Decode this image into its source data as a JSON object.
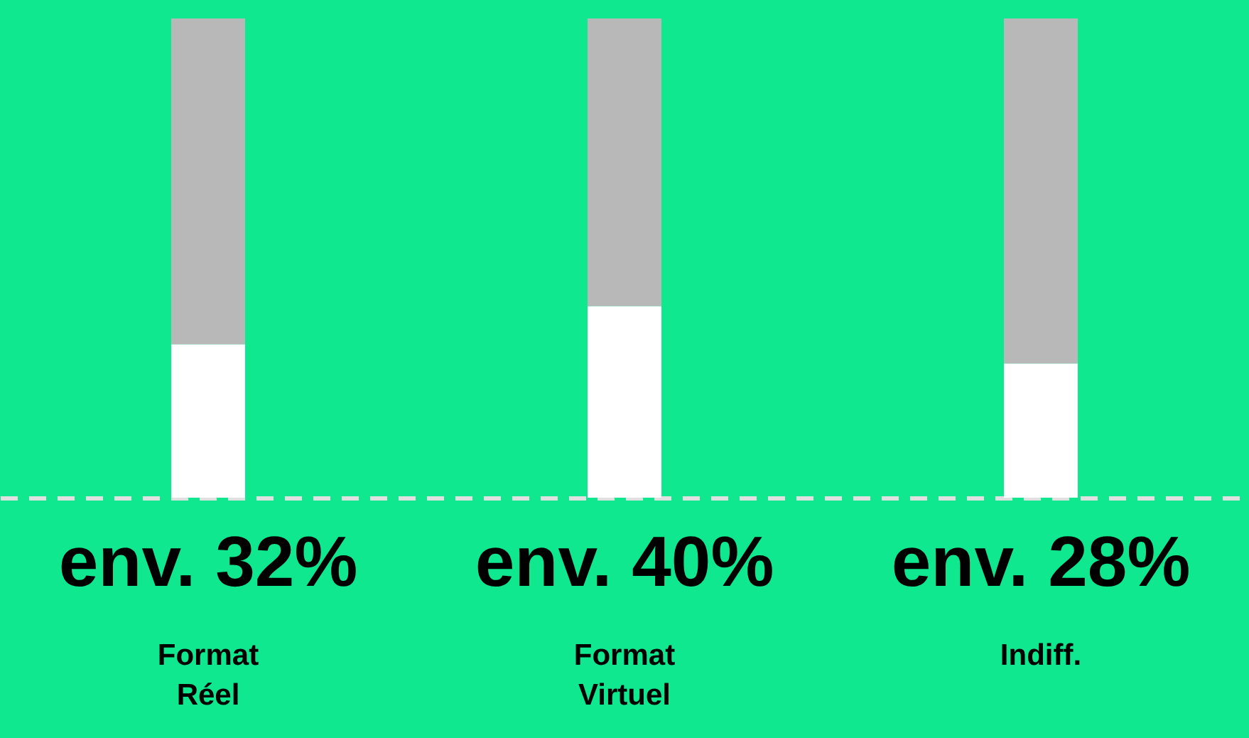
{
  "chart_data": {
    "type": "bar",
    "stacked": true,
    "categories": [
      "Format Réel",
      "Format Virtuel",
      "Indiff."
    ],
    "ylim": [
      0,
      100
    ],
    "tick_labels": "x",
    "grid": false,
    "series": [
      {
        "color": "#ffffff",
        "values": [
          32,
          40,
          28
        ],
        "value_labels": [
          "env. 32%",
          "env. 40%",
          "env. 28%"
        ]
      },
      {
        "color": "#b8b8b8",
        "values": [
          68,
          60,
          72
        ]
      }
    ]
  }
}
